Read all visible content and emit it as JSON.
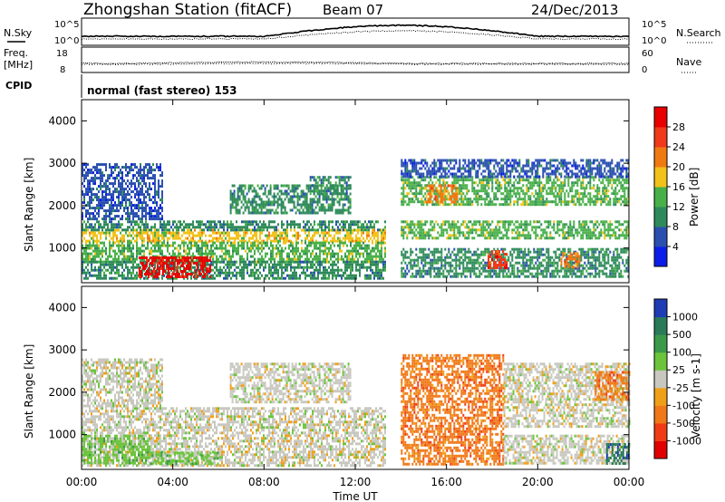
{
  "header": {
    "station": "Zhongshan Station (fitACF)",
    "beam": "Beam 07",
    "date": "24/Dec/2013"
  },
  "sky_panel": {
    "left_label": "N.Sky",
    "right_label": "N.Search",
    "left_ticks": [
      "10^5",
      "10^0"
    ],
    "right_ticks": [
      "10^5",
      "10^0"
    ]
  },
  "freq_panel": {
    "left_label_1": "Freq.",
    "left_label_2": "[MHz]",
    "right_label": "Nave",
    "left_ticks": [
      "18",
      "8"
    ],
    "right_ticks": [
      "60",
      "0"
    ]
  },
  "cpid": {
    "label": "CPID",
    "text": "normal (fast stereo) 153"
  },
  "time_axis": {
    "label": "Time UT",
    "ticks": [
      "00:00",
      "04:00",
      "08:00",
      "12:00",
      "16:00",
      "20:00",
      "00:00"
    ]
  },
  "chart_data": [
    {
      "type": "heatmap",
      "quantity": "Power",
      "ylabel": "Slant Range [km]",
      "xlabel": "Time UT",
      "x_range_hours": [
        0,
        24
      ],
      "ylim": [
        180,
        4500
      ],
      "yticks": [
        1000,
        2000,
        3000,
        4000
      ],
      "colorbar": {
        "label": "Power [dB]",
        "ticks": [
          "4",
          "8",
          "12",
          "16",
          "20",
          "24",
          "28"
        ],
        "colors": [
          "#0a1ee8",
          "#2a4fb0",
          "#2e8a5a",
          "#48b048",
          "#f2c21a",
          "#f07a12",
          "#f03a1a",
          "#e80000"
        ]
      },
      "regions": [
        {
          "t0": 0.0,
          "t1": 13.3,
          "r0": 1150,
          "r1": 1450,
          "level": 4
        },
        {
          "t0": 0.0,
          "t1": 13.3,
          "r0": 1450,
          "r1": 1650,
          "level": 2
        },
        {
          "t0": 0.0,
          "t1": 13.3,
          "r0": 700,
          "r1": 1150,
          "level": 3
        },
        {
          "t0": 0.0,
          "t1": 13.3,
          "r0": 300,
          "r1": 700,
          "level": 2
        },
        {
          "t0": 0.0,
          "t1": 3.5,
          "r0": 1700,
          "r1": 3000,
          "level": 1
        },
        {
          "t0": 6.5,
          "t1": 11.8,
          "r0": 1800,
          "r1": 2500,
          "level": 2
        },
        {
          "t0": 10.0,
          "t1": 11.8,
          "r0": 2300,
          "r1": 2700,
          "level": 2
        },
        {
          "t0": 2.5,
          "t1": 5.6,
          "r0": 300,
          "r1": 800,
          "level": 7
        },
        {
          "t0": 14.0,
          "t1": 24.0,
          "r0": 1250,
          "r1": 1650,
          "level": 3
        },
        {
          "t0": 14.0,
          "t1": 24.0,
          "r0": 2000,
          "r1": 2700,
          "level": 3
        },
        {
          "t0": 14.0,
          "t1": 24.0,
          "r0": 300,
          "r1": 1000,
          "level": 2
        },
        {
          "t0": 14.0,
          "t1": 24.0,
          "r0": 2700,
          "r1": 3100,
          "level": 1
        },
        {
          "t0": 15.0,
          "t1": 16.5,
          "r0": 2100,
          "r1": 2500,
          "level": 5
        },
        {
          "t0": 17.8,
          "t1": 18.6,
          "r0": 550,
          "r1": 950,
          "level": 6
        },
        {
          "t0": 21.0,
          "t1": 21.8,
          "r0": 550,
          "r1": 900,
          "level": 5
        }
      ]
    },
    {
      "type": "heatmap",
      "quantity": "Velocity",
      "ylabel": "Slant Range [km]",
      "xlabel": "Time UT",
      "x_range_hours": [
        0,
        24
      ],
      "ylim": [
        180,
        4500
      ],
      "yticks": [
        1000,
        2000,
        3000,
        4000
      ],
      "colorbar": {
        "label": "Velocity [m s-1]",
        "ticks": [
          "1000",
          "500",
          "100",
          "25",
          "-25",
          "-100",
          "-500",
          "-1000"
        ],
        "colors": [
          "#1e3cb4",
          "#2a7a5a",
          "#3a9a4a",
          "#6cc43c",
          "#c8c8c0",
          "#f0a018",
          "#f07818",
          "#f03c14",
          "#e00000"
        ]
      },
      "regions": [
        {
          "t0": 0.0,
          "t1": 13.3,
          "r0": 300,
          "r1": 1650,
          "level": 4
        },
        {
          "t0": 0.0,
          "t1": 3.5,
          "r0": 1700,
          "r1": 2800,
          "level": 4
        },
        {
          "t0": 6.5,
          "t1": 11.8,
          "r0": 1800,
          "r1": 2700,
          "level": 4
        },
        {
          "t0": 0.0,
          "t1": 3.0,
          "r0": 300,
          "r1": 1000,
          "level": 3
        },
        {
          "t0": 3.0,
          "t1": 6.0,
          "r0": 300,
          "r1": 600,
          "level": 3
        },
        {
          "t0": 14.0,
          "t1": 18.5,
          "r0": 300,
          "r1": 2900,
          "level": 6
        },
        {
          "t0": 18.5,
          "t1": 24.0,
          "r0": 1200,
          "r1": 2700,
          "level": 4
        },
        {
          "t0": 18.5,
          "t1": 24.0,
          "r0": 300,
          "r1": 1000,
          "level": 4
        },
        {
          "t0": 22.5,
          "t1": 24.0,
          "r0": 1800,
          "r1": 2500,
          "level": 6
        },
        {
          "t0": 23.0,
          "t1": 24.0,
          "r0": 300,
          "r1": 800,
          "level": 1
        }
      ]
    }
  ]
}
